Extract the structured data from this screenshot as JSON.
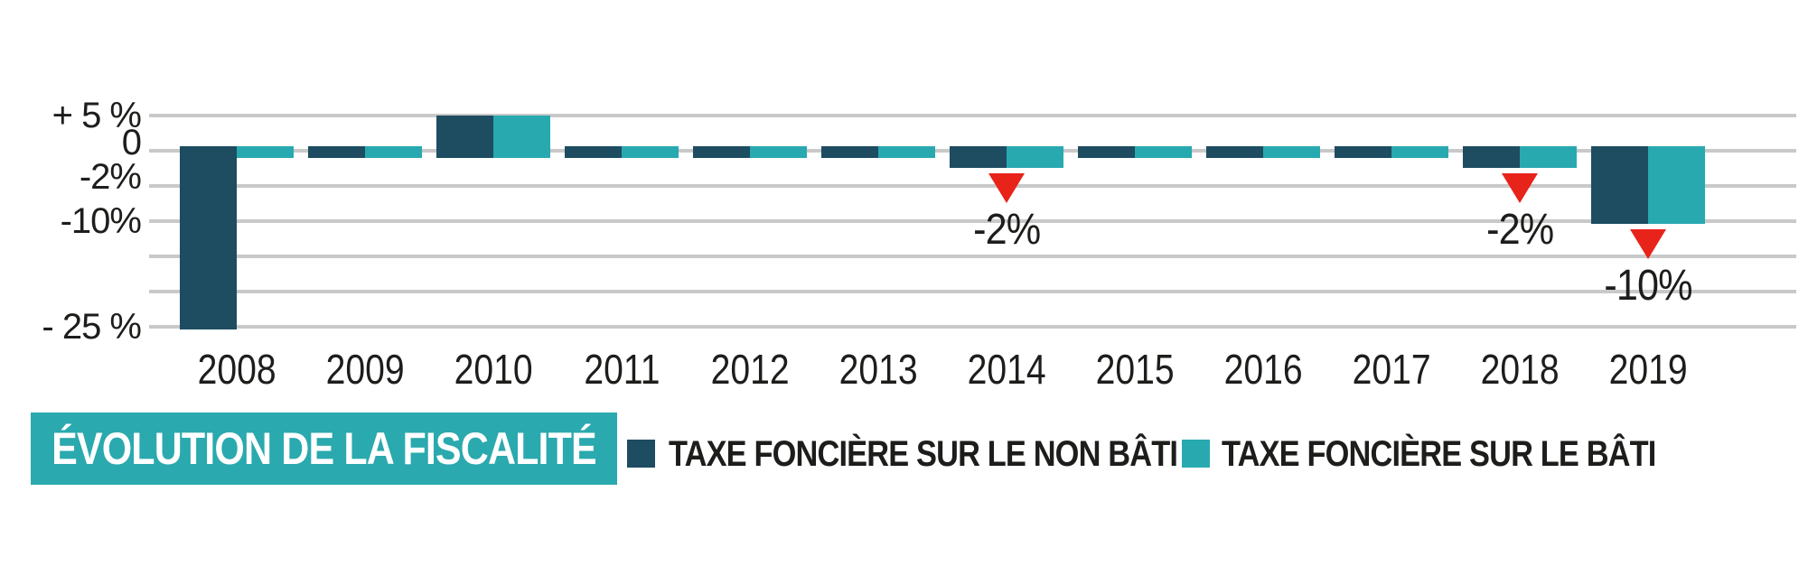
{
  "colors": {
    "navy": "#1e4c60",
    "teal": "#28a9b0",
    "title_bg": "#2aa9ae",
    "annotation_red": "#e8231a",
    "gridline": "#c9c9c9",
    "text": "#1d1d1b"
  },
  "chart_data": {
    "type": "bar",
    "title": "ÉVOLUTION DE LA FISCALITÉ",
    "xlabel": "",
    "ylabel": "",
    "ylim": [
      -27,
      7
    ],
    "grid": true,
    "legend_position": "bottom",
    "categories": [
      "2008",
      "2009",
      "2010",
      "2011",
      "2012",
      "2013",
      "2014",
      "2015",
      "2016",
      "2017",
      "2018",
      "2019"
    ],
    "series": [
      {
        "name": "TAXE FONCIÈRE SUR LE NON BÂTI",
        "color": "#1e4c60",
        "values": [
          -25,
          0,
          5,
          0,
          0,
          0,
          -2,
          0,
          0,
          0,
          -2,
          -10
        ],
        "hatched": [
          false,
          false,
          false,
          false,
          false,
          true,
          false,
          true,
          false,
          false,
          false,
          false
        ]
      },
      {
        "name": "TAXE FONCIÈRE SUR LE BÂTI",
        "color": "#28a9b0",
        "values": [
          0,
          0,
          5,
          0,
          0,
          0,
          -2,
          0,
          0,
          0,
          -2,
          -10
        ],
        "hatched": [
          false,
          false,
          false,
          false,
          true,
          true,
          false,
          true,
          false,
          false,
          false,
          false
        ]
      }
    ],
    "y_ticks": [
      {
        "label": "+ 5 %",
        "value": 5
      },
      {
        "label": "0",
        "value": 0
      },
      {
        "label": "-2%",
        "value": -2
      },
      {
        "label": "-10%",
        "value": -10
      },
      {
        "label": "- 25 %",
        "value": -25
      }
    ],
    "gridline_values": [
      5,
      0,
      -5,
      -10,
      -15,
      -20,
      -25
    ],
    "annotations": [
      {
        "year": "2014",
        "label": "-2%"
      },
      {
        "year": "2018",
        "label": "-2%"
      },
      {
        "year": "2019",
        "label": "-10%"
      }
    ]
  }
}
